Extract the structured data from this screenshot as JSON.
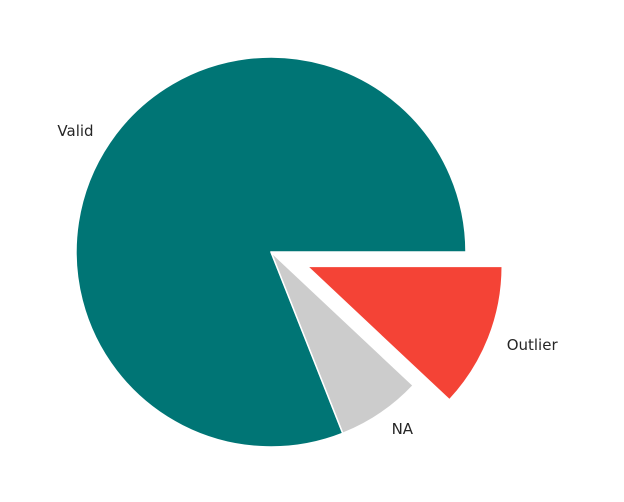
{
  "chart_data": {
    "type": "pie",
    "labels": [
      "Valid",
      "NA",
      "Outlier"
    ],
    "values": [
      81,
      7,
      12
    ],
    "colors": [
      "#007575",
      "#cccccc",
      "#f44336"
    ],
    "explode": [
      0,
      0,
      0.2
    ],
    "start_angle_deg": 0,
    "direction": "counterclockwise-from-3-oclock",
    "title": "",
    "legend": "none"
  }
}
